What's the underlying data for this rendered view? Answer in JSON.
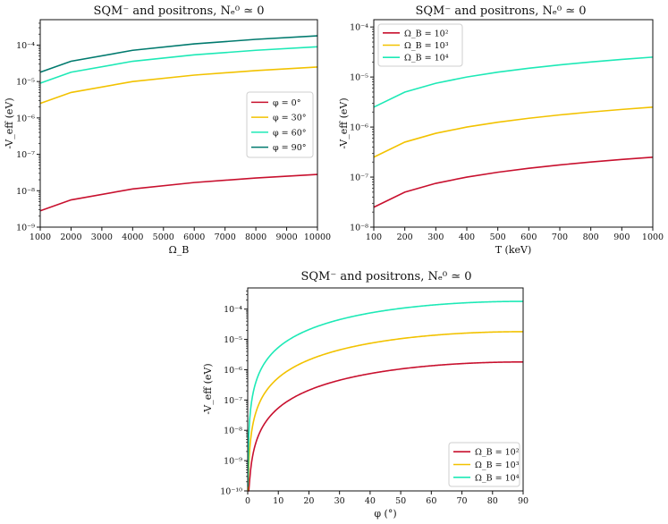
{
  "chart_data": [
    {
      "type": "line",
      "title": "SQM⁻ and positrons, Nₑ⁰ ≃ 0",
      "xlabel": "Ω_B",
      "ylabel": "-V_eff (eV)",
      "xscale": "linear",
      "yscale": "log",
      "xlim": [
        1000,
        10000
      ],
      "ylim": [
        1e-09,
        0.0005
      ],
      "xticks": [
        1000,
        2000,
        3000,
        4000,
        5000,
        6000,
        7000,
        8000,
        9000,
        10000
      ],
      "xtick_labels": [
        "1000",
        "2000",
        "3000",
        "4000",
        "5000",
        "6000",
        "7000",
        "8000",
        "9000",
        "10000"
      ],
      "yticks": [
        -9,
        -8,
        -7,
        -6,
        -5,
        -4
      ],
      "ytick_labels": [
        "10⁻⁹",
        "10⁻⁸",
        "10⁻⁷",
        "10⁻⁶",
        "10⁻⁵",
        "10⁻⁴"
      ],
      "legend": "center-right",
      "series": [
        {
          "name": "φ = 0°",
          "color": "#c8102e",
          "x": [
            1000,
            2000,
            4000,
            6000,
            8000,
            10000
          ],
          "values": [
            2.8e-09,
            5.6e-09,
            1.12e-08,
            1.68e-08,
            2.24e-08,
            2.8e-08
          ]
        },
        {
          "name": "φ = 30°",
          "color": "#f2c200",
          "x": [
            1000,
            2000,
            4000,
            6000,
            8000,
            10000
          ],
          "values": [
            2.5e-06,
            5e-06,
            1e-05,
            1.5e-05,
            2e-05,
            2.5e-05
          ]
        },
        {
          "name": "φ = 60°",
          "color": "#1de9b6",
          "x": [
            1000,
            2000,
            4000,
            6000,
            8000,
            10000
          ],
          "values": [
            9e-06,
            1.8e-05,
            3.6e-05,
            5.4e-05,
            7.2e-05,
            9e-05
          ]
        },
        {
          "name": "φ = 90°",
          "color": "#007a6e",
          "x": [
            1000,
            2000,
            4000,
            6000,
            8000,
            10000
          ],
          "values": [
            1.8e-05,
            3.6e-05,
            7.2e-05,
            0.000108,
            0.000144,
            0.00018
          ]
        }
      ]
    },
    {
      "type": "line",
      "title": "SQM⁻ and positrons, Nₑ⁰ ≃ 0",
      "xlabel": "T (keV)",
      "ylabel": "-V_eff (eV)",
      "xscale": "linear",
      "yscale": "log",
      "xlim": [
        100,
        1000
      ],
      "ylim": [
        1e-08,
        0.00014
      ],
      "xticks": [
        100,
        200,
        300,
        400,
        500,
        600,
        700,
        800,
        900,
        1000
      ],
      "xtick_labels": [
        "100",
        "200",
        "300",
        "400",
        "500",
        "600",
        "700",
        "800",
        "900",
        "1000"
      ],
      "yticks": [
        -8,
        -7,
        -6,
        -5,
        -4
      ],
      "ytick_labels": [
        "10⁻⁸",
        "10⁻⁷",
        "10⁻⁶",
        "10⁻⁵",
        "10⁻⁴"
      ],
      "legend": "top-left",
      "series": [
        {
          "name": "Ω_B = 10²",
          "color": "#c8102e",
          "x": [
            100,
            200,
            300,
            400,
            500,
            600,
            700,
            800,
            900,
            1000
          ],
          "values": [
            2.5e-08,
            5e-08,
            7.5e-08,
            1e-07,
            1.25e-07,
            1.5e-07,
            1.75e-07,
            2e-07,
            2.25e-07,
            2.5e-07
          ]
        },
        {
          "name": "Ω_B = 10³",
          "color": "#f2c200",
          "x": [
            100,
            200,
            300,
            400,
            500,
            600,
            700,
            800,
            900,
            1000
          ],
          "values": [
            2.5e-07,
            5e-07,
            7.5e-07,
            1e-06,
            1.25e-06,
            1.5e-06,
            1.75e-06,
            2e-06,
            2.25e-06,
            2.5e-06
          ]
        },
        {
          "name": "Ω_B = 10⁴",
          "color": "#1de9b6",
          "x": [
            100,
            200,
            300,
            400,
            500,
            600,
            700,
            800,
            900,
            1000
          ],
          "values": [
            2.5e-06,
            5e-06,
            7.5e-06,
            1e-05,
            1.25e-05,
            1.5e-05,
            1.75e-05,
            2e-05,
            2.25e-05,
            2.5e-05
          ]
        }
      ]
    },
    {
      "type": "line",
      "title": "SQM⁻ and positrons, Nₑ⁰ ≃ 0",
      "xlabel": "φ (°)",
      "ylabel": "-V_eff (eV)",
      "xscale": "linear",
      "yscale": "log",
      "xlim": [
        0,
        90
      ],
      "ylim": [
        1e-10,
        0.0005
      ],
      "xticks": [
        0,
        10,
        20,
        30,
        40,
        50,
        60,
        70,
        80,
        90
      ],
      "xtick_labels": [
        "0",
        "10",
        "20",
        "30",
        "40",
        "50",
        "60",
        "70",
        "80",
        "90"
      ],
      "yticks": [
        -10,
        -9,
        -8,
        -7,
        -6,
        -5,
        -4
      ],
      "ytick_labels": [
        "10⁻¹⁰",
        "10⁻⁹",
        "10⁻⁸",
        "10⁻⁷",
        "10⁻⁶",
        "10⁻⁵",
        "10⁻⁴"
      ],
      "legend": "bottom-right",
      "series": [
        {
          "name": "Ω_B = 10²",
          "color": "#c8102e",
          "amplitude": 1.8e-06
        },
        {
          "name": "Ω_B = 10³",
          "color": "#f2c200",
          "amplitude": 1.8e-05
        },
        {
          "name": "Ω_B = 10⁴",
          "color": "#1de9b6",
          "amplitude": 0.00018
        }
      ]
    }
  ]
}
